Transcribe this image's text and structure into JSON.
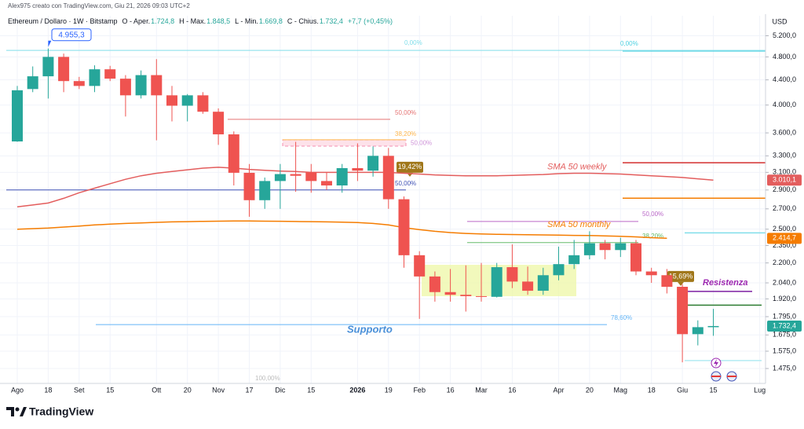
{
  "chart_data": {
    "type": "candlestick",
    "credit": "Alex975 creato con TradingView.com, Giu 21, 2026 09:03 UTC+2",
    "header": [
      {
        "text": "Ethereum / Dollaro · 1W · Bitstamp"
      },
      {
        "text": "O - Aper."
      },
      {
        "text": "1.724,8",
        "color": "#26a69a"
      },
      {
        "text": "H - Max."
      },
      {
        "text": "1.848,5",
        "color": "#26a69a"
      },
      {
        "text": "L - Min."
      },
      {
        "text": "1.669,8",
        "color": "#26a69a"
      },
      {
        "text": "C - Chius."
      },
      {
        "text": "1.732,4",
        "color": "#26a69a"
      },
      {
        "text": "+7,7 (+0,45%)",
        "color": "#26a69a"
      }
    ],
    "currency": "USD",
    "logo": "TradingView",
    "log_scale": true,
    "grid": true,
    "up_color": "#26a69a",
    "down_color": "#ef5350",
    "categories": [
      "Ago",
      null,
      "18",
      null,
      "Set",
      null,
      "15",
      null,
      null,
      "Ott",
      null,
      "20",
      null,
      "Nov",
      null,
      "17",
      null,
      "Dic",
      null,
      "15",
      null,
      null,
      "2026",
      null,
      "19",
      null,
      "Feb",
      null,
      "16",
      null,
      "Mar",
      null,
      "16",
      null,
      null,
      "Apr",
      null,
      "20",
      null,
      "Mag",
      null,
      "18",
      null,
      "Giu",
      null,
      "15",
      null,
      null,
      "Lug"
    ],
    "open": [
      3485,
      4250,
      4460,
      4800,
      4380,
      4300,
      4580,
      4420,
      4150,
      4480,
      4150,
      3990,
      4150,
      3900,
      3580,
      3095,
      2790,
      3000,
      3080,
      3100,
      3000,
      2950,
      3150,
      3120,
      3300,
      2800,
      2265,
      2090,
      1970,
      1950,
      1940,
      1935,
      2165,
      2050,
      1980,
      2100,
      2190,
      2265,
      2370,
      2310,
      2370,
      2130,
      2100,
      2010,
      1680,
      1724.8,
      null,
      null,
      null
    ],
    "high": [
      4300,
      4630,
      4955.3,
      4860,
      4450,
      4650,
      4640,
      4480,
      4560,
      4760,
      4300,
      4170,
      4200,
      3950,
      3620,
      3200,
      3040,
      3200,
      3480,
      3200,
      3100,
      3200,
      3460,
      3420,
      3400,
      2830,
      2300,
      2130,
      2150,
      2180,
      2200,
      2200,
      2360,
      2170,
      2160,
      2340,
      2400,
      2480,
      2400,
      2420,
      2400,
      2160,
      2150,
      2030,
      1770,
      1848.5,
      null,
      null,
      null
    ],
    "low": [
      3480,
      4200,
      4100,
      4200,
      4250,
      4200,
      4380,
      3830,
      4100,
      3500,
      3760,
      3760,
      3870,
      3440,
      2950,
      2620,
      2700,
      2700,
      2880,
      2870,
      2900,
      2870,
      3000,
      3050,
      2700,
      2160,
      1780,
      1900,
      1900,
      1830,
      1900,
      1930,
      2000,
      1950,
      1950,
      2060,
      2150,
      2230,
      2230,
      2250,
      2100,
      2040,
      1960,
      1510,
      1610,
      1669.8,
      null,
      null,
      null
    ],
    "close": [
      4230,
      4460,
      4800,
      4380,
      4300,
      4580,
      4420,
      4150,
      4480,
      4150,
      3990,
      4150,
      3900,
      3580,
      3095,
      2790,
      3000,
      3080,
      3060,
      3000,
      2950,
      3150,
      3120,
      3300,
      2800,
      2265,
      2090,
      1970,
      1950,
      1940,
      1935,
      2165,
      2050,
      1980,
      2100,
      2190,
      2265,
      2370,
      2310,
      2370,
      2130,
      2100,
      2010,
      1680,
      1725,
      1732.4,
      null,
      null,
      null
    ],
    "series": [
      {
        "name": "SMA 50 weekly",
        "color": "#e35d5d",
        "values": [
          2720,
          2740,
          2760,
          2810,
          2870,
          2920,
          2970,
          3020,
          3060,
          3090,
          3110,
          3130,
          3150,
          3160,
          3150,
          3135,
          3125,
          3115,
          3110,
          3100,
          3100,
          3100,
          3100,
          3100,
          3100,
          3090,
          3080,
          3070,
          3065,
          3060,
          3060,
          3060,
          3065,
          3070,
          3075,
          3085,
          3090,
          3090,
          3085,
          3080,
          3070,
          3060,
          3050,
          3040,
          3025,
          3010.1,
          null,
          null,
          null
        ]
      },
      {
        "name": "SMA 50 monthly",
        "color": "#f57c00",
        "values": [
          2500,
          2505,
          2510,
          2520,
          2530,
          2540,
          2548,
          2555,
          2560,
          2565,
          2570,
          2572,
          2575,
          2577,
          2578,
          2578,
          2577,
          2576,
          2574,
          2572,
          2570,
          2567,
          2563,
          2555,
          2540,
          2515,
          2495,
          2480,
          2468,
          2460,
          2455,
          2452,
          2450,
          2448,
          2446,
          2444,
          2442,
          2440,
          2437,
          2434,
          2428,
          2421,
          2414.7,
          null,
          null,
          null,
          null,
          null,
          null
        ]
      }
    ],
    "annotations": [
      {
        "text": "Resistenza",
        "color": "#9c27b0"
      },
      {
        "text": "Supporto",
        "color": "#4a90d9"
      }
    ],
    "high_label": {
      "value": 4955.3,
      "label": "4.955,3"
    },
    "price_labels": [
      {
        "value": 3010.1,
        "label": "3.010,1",
        "color": "#e35d5d"
      },
      {
        "value": 2414.7,
        "label": "2.414,7",
        "color": "#f57c00"
      },
      {
        "value": 1732.4,
        "label": "1.732,4",
        "color": "#26a69a"
      }
    ],
    "levels": [
      {
        "label": "0,00%",
        "value": 4920,
        "color": "#80deea"
      },
      {
        "label": "0,00%",
        "value": 4905,
        "color": "#4dd0e1"
      },
      {
        "label": "50,00%",
        "value": 3789,
        "color": "#e57373"
      },
      {
        "label": "38,20%",
        "value": 3507,
        "color": "#ffb74d"
      },
      {
        "label": "50,00%",
        "value": 3460,
        "color": "#ce93d8"
      },
      {
        "label": "19,42%",
        "value": 3161,
        "color": "#a0771a"
      },
      {
        "label": "50,00%",
        "value": 2900,
        "color": "#3f51b5"
      },
      {
        "label": "50,00%",
        "value": 2574,
        "color": "#ba68c8"
      },
      {
        "label": "38,20%",
        "value": 2376,
        "color": "#66bb6a"
      },
      {
        "label": "15,69%",
        "value": 2090,
        "color": "#a0771a"
      },
      {
        "label": "78,60%",
        "value": 1742,
        "color": "#64b5f6"
      },
      {
        "label": "100,00%",
        "value": 1419,
        "color": "#bdbdbd"
      },
      {
        "value": 3215,
        "color": "#d32f2f"
      },
      {
        "value": 2811,
        "color": "#f57c00"
      },
      {
        "value": 2465,
        "color": "#80deea"
      },
      {
        "value": 1975,
        "color": "#7b1fa2"
      },
      {
        "value": 1875,
        "color": "#2e7d32"
      },
      {
        "value": 1520,
        "color": "#b2ebf2"
      }
    ],
    "ylim": [
      1394,
      5610
    ],
    "yticks": [
      {
        "value": 1475,
        "label": "1.475,0"
      },
      {
        "value": 1575,
        "label": "1.575,0"
      },
      {
        "value": 1675,
        "label": "1.675,0"
      },
      {
        "value": 1795,
        "label": "1.795,0"
      },
      {
        "value": 1920,
        "label": "1.920,0"
      },
      {
        "value": 2040,
        "label": "2.040,0"
      },
      {
        "value": 2200,
        "label": "2.200,0"
      },
      {
        "value": 2350,
        "label": "2.350,0"
      },
      {
        "value": 2500,
        "label": "2.500,0"
      },
      {
        "value": 2700,
        "label": "2.700,0"
      },
      {
        "value": 2900,
        "label": "2.900,0"
      },
      {
        "value": 3100,
        "label": "3.100,0"
      },
      {
        "value": 3300,
        "label": "3.300,0"
      },
      {
        "value": 3600,
        "label": "3.600,0"
      },
      {
        "value": 4000,
        "label": "4.000,0"
      },
      {
        "value": 4400,
        "label": "4.400,0"
      },
      {
        "value": 4800,
        "label": "4.800,0"
      },
      {
        "value": 5200,
        "label": "5.200,0"
      }
    ]
  }
}
